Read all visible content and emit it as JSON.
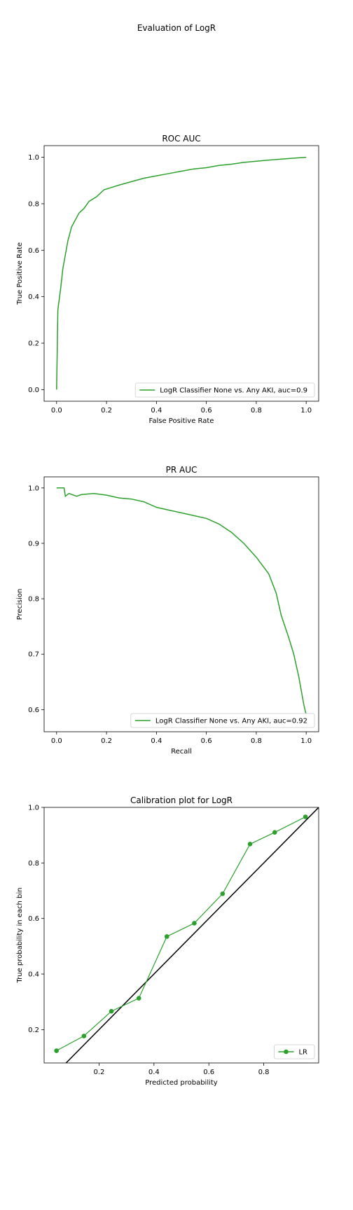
{
  "suptitle": "Evaluation of LogR",
  "colors": {
    "series": "#2ca02c",
    "diagonal": "#000000",
    "axes": "#000000"
  },
  "chart_data": [
    {
      "type": "line",
      "title": "ROC AUC",
      "xlabel": "False Positive Rate",
      "ylabel": "True Positive Rate",
      "xlim": [
        -0.05,
        1.05
      ],
      "ylim": [
        -0.05,
        1.05
      ],
      "xticks": [
        0.0,
        0.2,
        0.4,
        0.6,
        0.8,
        1.0
      ],
      "yticks": [
        0.0,
        0.2,
        0.4,
        0.6,
        0.8,
        1.0
      ],
      "xtick_labels": [
        "0.0",
        "0.2",
        "0.4",
        "0.6",
        "0.8",
        "1.0"
      ],
      "ytick_labels": [
        "0.0",
        "0.2",
        "0.4",
        "0.6",
        "0.8",
        "1.0"
      ],
      "grid": false,
      "legend_position": "lower-right",
      "series": [
        {
          "name": "LogR Classifier None vs. Any AKI, auc=0.9",
          "x": [
            0.0,
            0.003,
            0.005,
            0.008,
            0.012,
            0.018,
            0.025,
            0.035,
            0.045,
            0.06,
            0.075,
            0.09,
            0.11,
            0.13,
            0.16,
            0.19,
            0.22,
            0.25,
            0.3,
            0.35,
            0.4,
            0.45,
            0.5,
            0.55,
            0.6,
            0.65,
            0.7,
            0.75,
            0.8,
            0.85,
            0.9,
            0.95,
            1.0
          ],
          "y": [
            0.0,
            0.2,
            0.34,
            0.37,
            0.4,
            0.45,
            0.52,
            0.58,
            0.64,
            0.7,
            0.73,
            0.76,
            0.78,
            0.81,
            0.83,
            0.86,
            0.87,
            0.88,
            0.895,
            0.91,
            0.92,
            0.93,
            0.94,
            0.95,
            0.955,
            0.965,
            0.97,
            0.978,
            0.983,
            0.988,
            0.992,
            0.996,
            1.0
          ]
        }
      ]
    },
    {
      "type": "line",
      "title": "PR AUC",
      "xlabel": "Recall",
      "ylabel": "Precision",
      "xlim": [
        -0.05,
        1.05
      ],
      "ylim": [
        0.56,
        1.02
      ],
      "xticks": [
        0.0,
        0.2,
        0.4,
        0.6,
        0.8,
        1.0
      ],
      "yticks": [
        0.6,
        0.7,
        0.8,
        0.9,
        1.0
      ],
      "xtick_labels": [
        "0.0",
        "0.2",
        "0.4",
        "0.6",
        "0.8",
        "1.0"
      ],
      "ytick_labels": [
        "0.6",
        "0.7",
        "0.8",
        "0.9",
        "1.0"
      ],
      "grid": false,
      "legend_position": "lower-right",
      "series": [
        {
          "name": "LogR Classifier None vs. Any AKI, auc=0.92",
          "x": [
            0.0,
            0.03,
            0.035,
            0.05,
            0.08,
            0.1,
            0.15,
            0.2,
            0.25,
            0.3,
            0.35,
            0.4,
            0.45,
            0.5,
            0.55,
            0.6,
            0.65,
            0.7,
            0.75,
            0.8,
            0.85,
            0.88,
            0.9,
            0.93,
            0.95,
            0.97,
            0.99,
            1.0
          ],
          "y": [
            1.0,
            1.0,
            0.985,
            0.99,
            0.985,
            0.988,
            0.99,
            0.987,
            0.982,
            0.98,
            0.975,
            0.965,
            0.96,
            0.955,
            0.95,
            0.945,
            0.935,
            0.92,
            0.9,
            0.875,
            0.845,
            0.81,
            0.77,
            0.73,
            0.7,
            0.66,
            0.61,
            0.59
          ]
        }
      ]
    },
    {
      "type": "line",
      "title": "Calibration plot for LogR",
      "xlabel": "Predicted probability",
      "ylabel": "True probability in each bin",
      "xlim": [
        0.0,
        1.0
      ],
      "ylim": [
        0.08,
        1.0
      ],
      "xticks": [
        0.2,
        0.4,
        0.6,
        0.8
      ],
      "yticks": [
        0.2,
        0.4,
        0.6,
        0.8,
        1.0
      ],
      "xtick_labels": [
        "0.2",
        "0.4",
        "0.6",
        "0.8"
      ],
      "ytick_labels": [
        "0.2",
        "0.4",
        "0.6",
        "0.8",
        "1.0"
      ],
      "grid": false,
      "legend_position": "lower-right",
      "diagonal": true,
      "series": [
        {
          "name": "LR",
          "markers": true,
          "x": [
            0.045,
            0.145,
            0.245,
            0.345,
            0.447,
            0.547,
            0.65,
            0.75,
            0.84,
            0.952
          ],
          "y": [
            0.124,
            0.177,
            0.266,
            0.313,
            0.535,
            0.583,
            0.689,
            0.868,
            0.91,
            0.966
          ]
        }
      ]
    }
  ]
}
